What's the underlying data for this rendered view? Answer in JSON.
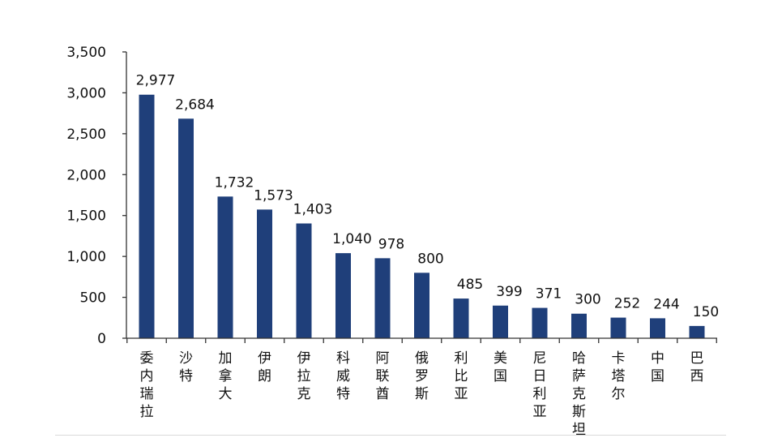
{
  "chart_data": {
    "type": "bar",
    "categories": [
      "委内瑞拉",
      "沙特",
      "加拿大",
      "伊朗",
      "伊拉克",
      "科威特",
      "阿联酋",
      "俄罗斯",
      "利比亚",
      "美国",
      "尼日利亚",
      "哈萨克斯坦",
      "卡塔尔",
      "中国",
      "巴西"
    ],
    "values": [
      2977,
      2684,
      1732,
      1573,
      1403,
      1040,
      978,
      800,
      485,
      399,
      371,
      300,
      252,
      244,
      150
    ],
    "value_labels": [
      "2,977",
      "2,684",
      "1,732",
      "1,573",
      "1,403",
      "1,040",
      "978",
      "800",
      "485",
      "399",
      "371",
      "300",
      "252",
      "244",
      "150"
    ],
    "yticks": [
      0,
      500,
      1000,
      1500,
      2000,
      2500,
      3000,
      3500
    ],
    "ytick_labels": [
      "0",
      "500",
      "1,000",
      "1,500",
      "2,000",
      "2,500",
      "3,000",
      "3,500"
    ],
    "ylim": [
      0,
      3500
    ],
    "title": "",
    "xlabel": "",
    "ylabel": "",
    "grid": false,
    "bar_color": "#1f3f7a"
  }
}
